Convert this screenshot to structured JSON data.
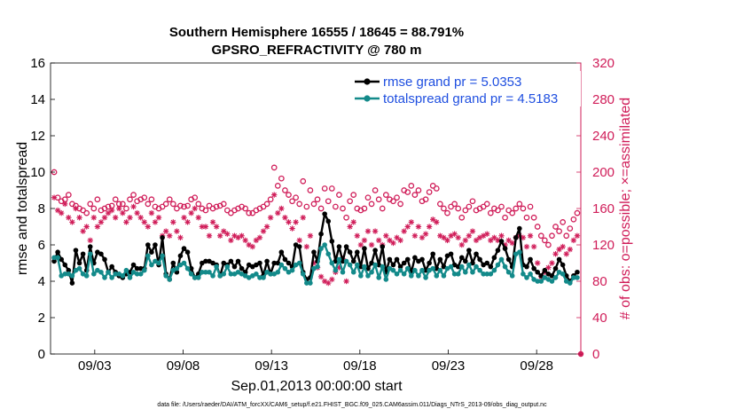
{
  "chart_data": {
    "type": "line",
    "title_line1": "Southern Hemisphere 16555 / 18645 = 88.791%",
    "title_line2": "GPSRO_REFRACTIVITY @ 780 m",
    "xlabel": "Sep.01,2013 00:00:00 start",
    "ylabel_left": "rmse and totalspread",
    "ylabel_right": "# of obs: o=possible; ×=assimilated",
    "footer": "data file: /Users/raeder/DAI/ATM_forcXX/CAM6_setup/f.e21.FHIST_BGC.f09_025.CAM6assim.011/Diags_NTrS_2013-09/obs_diag_output.nc",
    "x_ticks": [
      {
        "day": 2.5,
        "label": "09/03"
      },
      {
        "day": 7.5,
        "label": "09/08"
      },
      {
        "day": 12.5,
        "label": "09/13"
      },
      {
        "day": 17.5,
        "label": "09/18"
      },
      {
        "day": 22.5,
        "label": "09/23"
      },
      {
        "day": 27.5,
        "label": "09/28"
      }
    ],
    "xlim": [
      0,
      30
    ],
    "ylim_left": [
      0,
      16
    ],
    "ylim_right": [
      0,
      320
    ],
    "yticks_left": [
      "0",
      "2",
      "4",
      "6",
      "8",
      "10",
      "12",
      "14",
      "16"
    ],
    "yticks_right": [
      "0",
      "40",
      "80",
      "120",
      "160",
      "200",
      "240",
      "280",
      "320"
    ],
    "colors": {
      "rmse": "#000000",
      "spread": "#138a8a",
      "obs": "#d01d59",
      "legend_text": "#1f4fe0",
      "right_axis": "#d01d59"
    },
    "series": [
      {
        "name": "rmse grand pr = 5.0353",
        "key": "rmse",
        "values": [
          5.1,
          5.6,
          5.2,
          4.9,
          4.6,
          3.9,
          5.7,
          5.0,
          5.5,
          4.6,
          5.9,
          5.0,
          5.6,
          5.5,
          5.2,
          4.5,
          4.8,
          4.5,
          4.3,
          4.2,
          4.4,
          4.5,
          4.9,
          4.7,
          4.7,
          4.7,
          6.0,
          5.6,
          6.0,
          4.9,
          6.4,
          4.4,
          4.1,
          5.0,
          4.5,
          5.4,
          5.8,
          5.6,
          4.7,
          4.2,
          4.4,
          5.0,
          5.1,
          5.1,
          5.0,
          4.9,
          4.3,
          5.0,
          4.9,
          5.1,
          4.8,
          5.1,
          4.7,
          4.5,
          4.9,
          4.8,
          4.9,
          5.0,
          4.3,
          5.1,
          4.4,
          5.0,
          5.0,
          5.6,
          5.2,
          5.0,
          4.8,
          6.0,
          5.9,
          4.5,
          4.1,
          4.2,
          5.6,
          5.1,
          6.6,
          7.7,
          7.3,
          6.2,
          5.1,
          5.9,
          5.1,
          5.9,
          5.6,
          5.1,
          5.6,
          4.8,
          5.8,
          4.7,
          5.0,
          5.7,
          4.9,
          5.9,
          4.5,
          5.2,
          4.9,
          5.2,
          4.8,
          5.0,
          5.2,
          4.5,
          5.3,
          5.1,
          5.2,
          4.6,
          5.0,
          5.5,
          4.7,
          5.2,
          4.8,
          5.4,
          5.5,
          4.9,
          4.8,
          5.3,
          5.1,
          5.7,
          5.0,
          5.5,
          5.2,
          4.9,
          5.0,
          4.8,
          5.3,
          5.7,
          6.2,
          5.8,
          5.2,
          4.8,
          6.4,
          6.9,
          4.9,
          4.8,
          5.2,
          4.7,
          4.5,
          4.3,
          4.6,
          4.4,
          4.3,
          4.7,
          5.2,
          4.9,
          4.3,
          4.0,
          4.3,
          4.5
        ]
      },
      {
        "name": "totalspread grand pr = 4.5183",
        "key": "spread",
        "values": [
          5.3,
          5.3,
          4.3,
          4.4,
          4.4,
          4.3,
          4.6,
          4.7,
          4.4,
          4.3,
          5.5,
          4.4,
          4.6,
          4.5,
          4.2,
          4.5,
          4.2,
          4.4,
          4.4,
          4.3,
          4.6,
          4.2,
          4.5,
          4.4,
          4.4,
          4.6,
          5.4,
          4.9,
          5.1,
          5.0,
          5.4,
          4.3,
          4.1,
          4.6,
          4.7,
          4.9,
          5.0,
          4.7,
          4.4,
          4.2,
          4.2,
          4.5,
          4.5,
          4.5,
          4.3,
          4.8,
          4.3,
          4.4,
          4.8,
          4.4,
          4.4,
          4.5,
          4.4,
          4.3,
          4.2,
          4.3,
          4.4,
          4.2,
          4.2,
          4.5,
          4.4,
          4.4,
          4.5,
          4.9,
          4.7,
          4.5,
          4.6,
          4.9,
          5.0,
          4.4,
          3.9,
          3.9,
          4.7,
          4.8,
          5.8,
          6.0,
          5.5,
          5.0,
          4.6,
          5.2,
          4.5,
          5.1,
          4.9,
          4.5,
          4.9,
          4.3,
          4.8,
          4.3,
          4.5,
          4.9,
          4.2,
          4.8,
          4.1,
          4.7,
          4.6,
          4.4,
          4.6,
          4.4,
          4.7,
          4.3,
          4.6,
          4.3,
          4.6,
          4.2,
          4.6,
          4.7,
          4.3,
          4.6,
          4.3,
          4.7,
          4.8,
          4.4,
          4.4,
          4.8,
          4.5,
          4.9,
          4.5,
          4.8,
          4.6,
          4.4,
          4.4,
          4.4,
          4.6,
          4.9,
          5.2,
          4.8,
          4.5,
          4.3,
          5.5,
          5.6,
          4.4,
          4.2,
          4.4,
          4.1,
          4.0,
          4.0,
          4.2,
          4.1,
          4.0,
          4.2,
          4.5,
          4.4,
          4.0,
          3.9,
          4.2,
          4.2
        ]
      },
      {
        "name": "obs possible",
        "key": "possible",
        "values": [
          200,
          172,
          168,
          170,
          175,
          165,
          163,
          160,
          158,
          155,
          165,
          160,
          170,
          158,
          160,
          162,
          163,
          170,
          165,
          165,
          160,
          170,
          175,
          168,
          170,
          172,
          165,
          170,
          162,
          160,
          162,
          165,
          170,
          165,
          160,
          163,
          162,
          163,
          170,
          172,
          165,
          160,
          158,
          163,
          160,
          162,
          163,
          165,
          158,
          155,
          158,
          160,
          162,
          160,
          155,
          155,
          158,
          160,
          162,
          165,
          170,
          205,
          185,
          193,
          180,
          175,
          168,
          172,
          165,
          190,
          162,
          180,
          165,
          170,
          160,
          182,
          168,
          182,
          162,
          175,
          160,
          150,
          168,
          175,
          160,
          158,
          160,
          172,
          165,
          180,
          170,
          160,
          175,
          170,
          168,
          172,
          165,
          180,
          178,
          185,
          175,
          180,
          168,
          170,
          178,
          185,
          182,
          165,
          160,
          155,
          162,
          165,
          160,
          150,
          158,
          162,
          168,
          158,
          160,
          162,
          165,
          155,
          160,
          158,
          162,
          150,
          158,
          155,
          160,
          165,
          160,
          150,
          162,
          150,
          140,
          130,
          125,
          120,
          130,
          140,
          135,
          145,
          130,
          138,
          148,
          155
        ]
      },
      {
        "name": "obs assimilated",
        "key": "assimilated",
        "values": [
          172,
          158,
          155,
          165,
          150,
          145,
          160,
          150,
          135,
          140,
          125,
          150,
          140,
          145,
          150,
          155,
          158,
          150,
          160,
          155,
          145,
          150,
          162,
          155,
          150,
          145,
          140,
          155,
          145,
          150,
          130,
          135,
          130,
          145,
          135,
          128,
          150,
          145,
          155,
          160,
          150,
          140,
          140,
          130,
          145,
          140,
          130,
          135,
          132,
          125,
          130,
          128,
          130,
          125,
          120,
          118,
          125,
          128,
          135,
          140,
          150,
          175,
          155,
          160,
          150,
          145,
          138,
          145,
          125,
          150,
          118,
          130,
          100,
          95,
          85,
          80,
          78,
          82,
          90,
          95,
          105,
          80,
          140,
          145,
          130,
          120,
          125,
          135,
          120,
          135,
          125,
          120,
          130,
          125,
          122,
          128,
          125,
          135,
          140,
          145,
          130,
          140,
          128,
          132,
          140,
          148,
          145,
          130,
          128,
          125,
          130,
          132,
          128,
          120,
          125,
          130,
          135,
          125,
          128,
          130,
          132,
          125,
          128,
          125,
          130,
          120,
          125,
          122,
          128,
          130,
          128,
          118,
          130,
          118,
          100,
          85,
          90,
          95,
          100,
          110,
          115,
          118,
          110,
          115,
          125,
          130
        ]
      }
    ]
  }
}
